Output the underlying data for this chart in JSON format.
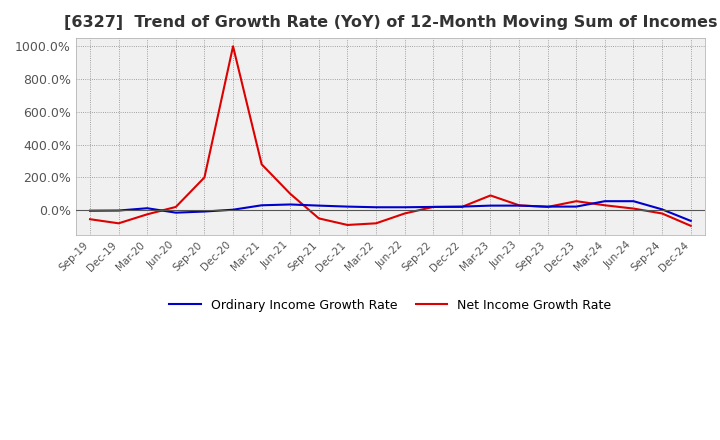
{
  "title": "[6327]  Trend of Growth Rate (YoY) of 12-Month Moving Sum of Incomes",
  "title_fontsize": 11.5,
  "ylim": [
    -150,
    1050
  ],
  "yticks": [
    0,
    200,
    400,
    600,
    800,
    1000
  ],
  "ytick_labels": [
    "0.0%",
    "200.0%",
    "400.0%",
    "600.0%",
    "800.0%",
    "1000.0%"
  ],
  "background_color": "#ffffff",
  "plot_bg_color": "#f0f0f0",
  "grid_color": "#888888",
  "ordinary_color": "#0000cc",
  "net_color": "#dd0000",
  "legend_ordinary": "Ordinary Income Growth Rate",
  "legend_net": "Net Income Growth Rate",
  "x_labels": [
    "Sep-19",
    "Dec-19",
    "Mar-20",
    "Jun-20",
    "Sep-20",
    "Dec-20",
    "Mar-21",
    "Jun-21",
    "Sep-21",
    "Dec-21",
    "Mar-22",
    "Jun-22",
    "Sep-22",
    "Dec-22",
    "Mar-23",
    "Jun-23",
    "Sep-23",
    "Dec-23",
    "Mar-24",
    "Jun-24",
    "Sep-24",
    "Dec-24"
  ],
  "ordinary_income_growth": [
    -3,
    -2,
    12,
    -15,
    -8,
    3,
    30,
    35,
    28,
    22,
    18,
    18,
    20,
    22,
    28,
    28,
    22,
    22,
    55,
    55,
    5,
    -65
  ],
  "net_income_growth": [
    -55,
    -80,
    -25,
    20,
    200,
    1000,
    280,
    100,
    -50,
    -90,
    -80,
    -20,
    20,
    20,
    90,
    30,
    20,
    55,
    30,
    10,
    -20,
    -95
  ]
}
